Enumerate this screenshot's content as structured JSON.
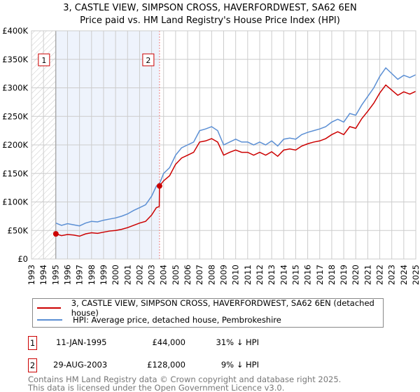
{
  "title_line1": "3, CASTLE VIEW, SIMPSON CROSS, HAVERFORDWEST, SA62 6EN",
  "title_line2": "Price paid vs. HM Land Registry's House Price Index (HPI)",
  "colors": {
    "price_paid": "#cc0000",
    "hpi": "#5b8fd4",
    "shade": "#eef3fc",
    "grid": "#cccccc"
  },
  "chart_data": {
    "type": "line",
    "title": "3, CASTLE VIEW, SIMPSON CROSS, HAVERFORDWEST, SA62 6EN — Price paid vs. HM Land Registry's House Price Index (HPI)",
    "xlabel": "",
    "ylabel": "",
    "xlim": [
      1993,
      2025
    ],
    "ylim": [
      0,
      400000
    ],
    "grid": true,
    "x_ticks": [
      "1993",
      "1994",
      "1995",
      "1996",
      "1997",
      "1998",
      "1999",
      "2000",
      "2001",
      "2002",
      "2003",
      "2004",
      "2005",
      "2006",
      "2007",
      "2008",
      "2009",
      "2010",
      "2011",
      "2012",
      "2013",
      "2014",
      "2015",
      "2016",
      "2017",
      "2018",
      "2019",
      "2020",
      "2021",
      "2022",
      "2023",
      "2024",
      "2025"
    ],
    "y_ticks": [
      {
        "v": 0,
        "label": "£0"
      },
      {
        "v": 50000,
        "label": "£50K"
      },
      {
        "v": 100000,
        "label": "£100K"
      },
      {
        "v": 150000,
        "label": "£150K"
      },
      {
        "v": 200000,
        "label": "£200K"
      },
      {
        "v": 250000,
        "label": "£250K"
      },
      {
        "v": 300000,
        "label": "£300K"
      },
      {
        "v": 350000,
        "label": "£350K"
      },
      {
        "v": 400000,
        "label": "£400K"
      }
    ],
    "hatched_range": [
      1993,
      1995.03
    ],
    "shaded_range": [
      1995.03,
      2003.66
    ],
    "series": [
      {
        "name": "3, CASTLE VIEW, SIMPSON CROSS, HAVERFORDWEST, SA62 6EN (detached house)",
        "color": "#cc0000",
        "x": [
          1995.03,
          1995.5,
          1996,
          1996.5,
          1997,
          1997.5,
          1998,
          1998.5,
          1999,
          1999.5,
          2000,
          2000.5,
          2001,
          2001.5,
          2002,
          2002.5,
          2003,
          2003.4,
          2003.64,
          2003.66,
          2004,
          2004.5,
          2005,
          2005.5,
          2006,
          2006.5,
          2007,
          2007.5,
          2008,
          2008.5,
          2009,
          2009.5,
          2010,
          2010.5,
          2011,
          2011.5,
          2012,
          2012.5,
          2013,
          2013.5,
          2014,
          2014.5,
          2015,
          2015.5,
          2016,
          2016.5,
          2017,
          2017.5,
          2018,
          2018.5,
          2019,
          2019.5,
          2020,
          2020.5,
          2021,
          2021.5,
          2022,
          2022.5,
          2023,
          2023.5,
          2024,
          2024.5,
          2025
        ],
        "y": [
          44000,
          41000,
          43000,
          42000,
          40000,
          44000,
          46000,
          45000,
          47000,
          49000,
          50000,
          52000,
          55000,
          59000,
          63000,
          66000,
          77000,
          90000,
          92000,
          128000,
          137000,
          146000,
          166000,
          177000,
          182000,
          187000,
          205000,
          207000,
          211000,
          205000,
          182000,
          187000,
          191000,
          187000,
          187000,
          182000,
          187000,
          182000,
          188000,
          180000,
          191000,
          193000,
          191000,
          198000,
          202000,
          205000,
          207000,
          211000,
          218000,
          223000,
          218000,
          232000,
          229000,
          246000,
          259000,
          273000,
          291000,
          305000,
          296000,
          287000,
          293000,
          289000,
          294000
        ]
      },
      {
        "name": "HPI: Average price, detached house, Pembrokeshire",
        "color": "#5b8fd4",
        "x": [
          1995.03,
          1995.5,
          1996,
          1996.5,
          1997,
          1997.5,
          1998,
          1998.5,
          1999,
          1999.5,
          2000,
          2000.5,
          2001,
          2001.5,
          2002,
          2002.5,
          2003,
          2003.4,
          2003.66,
          2004,
          2004.5,
          2005,
          2005.5,
          2006,
          2006.5,
          2007,
          2007.5,
          2008,
          2008.5,
          2009,
          2009.5,
          2010,
          2010.5,
          2011,
          2011.5,
          2012,
          2012.5,
          2013,
          2013.5,
          2014,
          2014.5,
          2015,
          2015.5,
          2016,
          2016.5,
          2017,
          2017.5,
          2018,
          2018.5,
          2019,
          2019.5,
          2020,
          2020.5,
          2021,
          2021.5,
          2022,
          2022.5,
          2023,
          2023.5,
          2024,
          2024.5,
          2025
        ],
        "y": [
          63000,
          59000,
          62000,
          60000,
          58000,
          63000,
          66000,
          65000,
          68000,
          70000,
          72000,
          75000,
          79000,
          85000,
          90000,
          95000,
          110000,
          128000,
          132000,
          150000,
          160000,
          182000,
          195000,
          200000,
          205000,
          225000,
          228000,
          232000,
          225000,
          200000,
          205000,
          210000,
          205000,
          205000,
          200000,
          205000,
          200000,
          207000,
          198000,
          210000,
          212000,
          210000,
          218000,
          222000,
          225000,
          228000,
          232000,
          240000,
          245000,
          240000,
          255000,
          252000,
          270000,
          285000,
          300000,
          320000,
          335000,
          325000,
          315000,
          322000,
          318000,
          323000
        ]
      }
    ],
    "annotations": [
      {
        "label": "1",
        "x": 1995.03,
        "y": 44000
      },
      {
        "label": "2",
        "x": 2003.66,
        "y": 128000
      }
    ],
    "legend_placement": "below"
  },
  "legend": {
    "items": [
      {
        "label": "3, CASTLE VIEW, SIMPSON CROSS, HAVERFORDWEST, SA62 6EN (detached house)"
      },
      {
        "label": "HPI: Average price, detached house, Pembrokeshire"
      }
    ]
  },
  "transactions": [
    {
      "num": "1",
      "date": "11-JAN-1995",
      "price": "£44,000",
      "hpi": "31% ↓ HPI"
    },
    {
      "num": "2",
      "date": "29-AUG-2003",
      "price": "£128,000",
      "hpi": "9% ↓ HPI"
    }
  ],
  "footer": {
    "line1": "Contains HM Land Registry data © Crown copyright and database right 2025.",
    "line2": "This data is licensed under the Open Government Licence v3.0."
  }
}
